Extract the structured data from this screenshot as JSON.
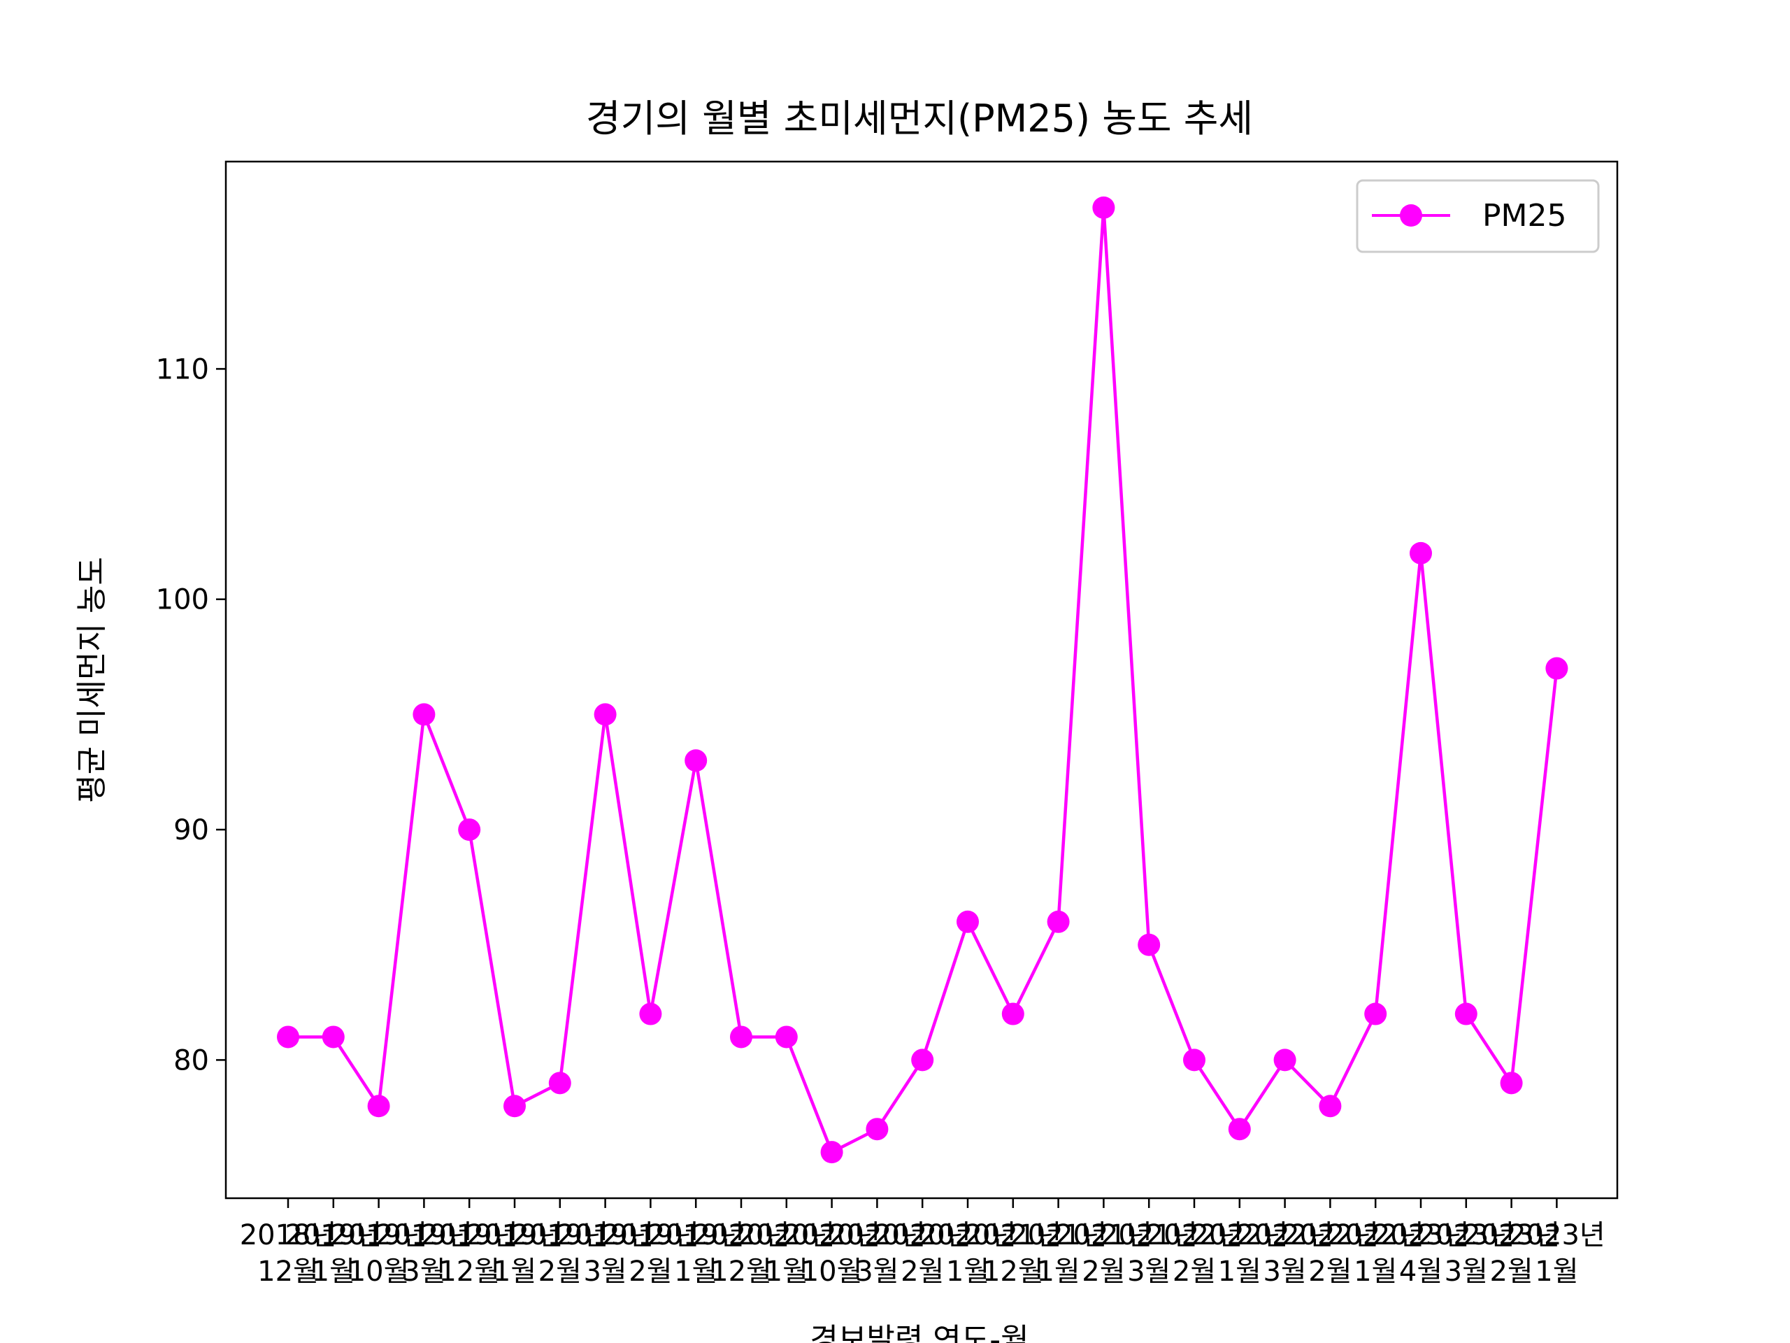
{
  "chart_data": {
    "type": "line",
    "title": "경기의 월별 초미세먼지(PM25) 농도 추세",
    "xlabel": "경보발령 연도-월",
    "ylabel": "평균 미세먼지 농도",
    "categories": [
      [
        "2018년",
        "12월"
      ],
      [
        "2019년",
        "1월"
      ],
      [
        "2019년",
        "10월"
      ],
      [
        "2019년",
        "3월"
      ],
      [
        "2019년",
        "12월"
      ],
      [
        "2019년",
        "1월"
      ],
      [
        "2019년",
        "2월"
      ],
      [
        "2019년",
        "3월"
      ],
      [
        "2019년",
        "2월"
      ],
      [
        "2019년",
        "1월"
      ],
      [
        "2020년",
        "12월"
      ],
      [
        "2020년",
        "1월"
      ],
      [
        "2020년",
        "10월"
      ],
      [
        "2020년",
        "3월"
      ],
      [
        "2020년",
        "2월"
      ],
      [
        "2020년",
        "1월"
      ],
      [
        "2021년",
        "12월"
      ],
      [
        "2021년",
        "1월"
      ],
      [
        "2021년",
        "2월"
      ],
      [
        "2021년",
        "3월"
      ],
      [
        "2022년",
        "2월"
      ],
      [
        "2022년",
        "1월"
      ],
      [
        "2022년",
        "3월"
      ],
      [
        "2022년",
        "2월"
      ],
      [
        "2022년",
        "1월"
      ],
      [
        "2023년",
        "4월"
      ],
      [
        "2023년",
        "3월"
      ],
      [
        "2023년",
        "2월"
      ],
      [
        "2023년",
        "1월"
      ]
    ],
    "series": [
      {
        "name": "PM25",
        "color": "#ff00ff",
        "values": [
          81,
          81,
          78,
          95,
          90,
          78,
          79,
          95,
          82,
          93,
          81,
          81,
          76,
          77,
          80,
          86,
          82,
          86,
          117,
          85,
          80,
          77,
          80,
          78,
          82,
          102,
          82,
          79,
          97
        ]
      }
    ],
    "ylim": [
      74.0,
      119.0
    ],
    "yticks": [
      80,
      90,
      100,
      110
    ],
    "grid": false,
    "legend": "top-right"
  }
}
